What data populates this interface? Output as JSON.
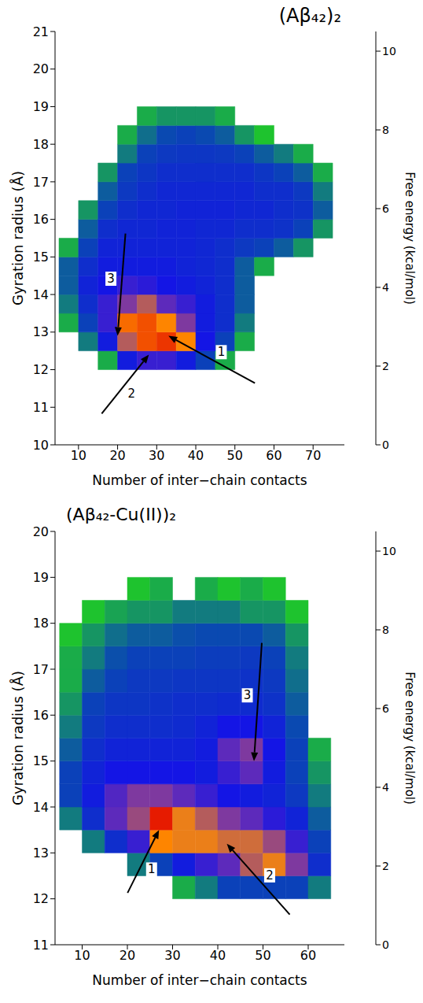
{
  "chart_data": [
    {
      "type": "heatmap",
      "title": "(Aβ₄₂)₂",
      "x_label": "Number of inter−chain contacts",
      "y_label": "Gyration radius (Å)",
      "colorbar_label": "Free energy (kcal/mol)",
      "xlim": [
        4,
        78
      ],
      "xticks": [
        10,
        20,
        30,
        40,
        50,
        60,
        70
      ],
      "ylim": [
        10,
        21
      ],
      "yticks": [
        10,
        11,
        12,
        13,
        14,
        15,
        16,
        17,
        18,
        19,
        20,
        21
      ],
      "colorbar_range": [
        0,
        10.5
      ],
      "colorbar_ticks": [
        0,
        2,
        4,
        6,
        8,
        10
      ],
      "x_edges": [
        5,
        10,
        15,
        20,
        25,
        30,
        35,
        40,
        45,
        50,
        55,
        60,
        65,
        70,
        75
      ],
      "y_edges": [
        12,
        12.5,
        13,
        13.5,
        14,
        14.5,
        15,
        15.5,
        16,
        16.5,
        17,
        17.5,
        18,
        18.5,
        19
      ],
      "z": [
        [
          null,
          null,
          5,
          2,
          1.5,
          1.5,
          2,
          3,
          5,
          null,
          null,
          null,
          null,
          null
        ],
        [
          null,
          4,
          2,
          0.8,
          0.3,
          0.2,
          0.5,
          1.8,
          3,
          5,
          null,
          null,
          null,
          null
        ],
        [
          5,
          3,
          1.5,
          0.4,
          0.3,
          0.5,
          1,
          2,
          2.5,
          4,
          null,
          null,
          null,
          null
        ],
        [
          4,
          2.5,
          1.5,
          1,
          0.8,
          1.2,
          1.5,
          2,
          2.5,
          3.5,
          null,
          null,
          null,
          null
        ],
        [
          3.5,
          2.2,
          1.8,
          1.5,
          1.6,
          1.8,
          2,
          2.2,
          2.5,
          3.5,
          null,
          null,
          null,
          null
        ],
        [
          3.5,
          2.5,
          2,
          2,
          2,
          2,
          2.2,
          2.3,
          2.5,
          3.5,
          5,
          null,
          null,
          null
        ],
        [
          5,
          3,
          2.2,
          2.2,
          2.2,
          2.2,
          2.2,
          2.3,
          2.5,
          2.8,
          3,
          3.5,
          4.5,
          null
        ],
        [
          null,
          3.5,
          2.5,
          2.3,
          2.3,
          2.2,
          2.2,
          2.3,
          2.3,
          2.5,
          2.5,
          2.6,
          3,
          4.5
        ],
        [
          null,
          4.5,
          3,
          2.5,
          2.3,
          2.3,
          2.2,
          2.2,
          2.2,
          2.3,
          2.3,
          2.5,
          2.6,
          3.5
        ],
        [
          null,
          null,
          3.5,
          2.8,
          2.5,
          2.3,
          2.3,
          2.3,
          2.3,
          2.3,
          2.5,
          2.5,
          2.8,
          4
        ],
        [
          null,
          null,
          4.5,
          3,
          2.7,
          2.5,
          2.5,
          2.5,
          2.5,
          2.5,
          2.7,
          3,
          3.5,
          5
        ],
        [
          null,
          null,
          null,
          4,
          3,
          2.8,
          2.7,
          2.7,
          2.8,
          3,
          3.5,
          4,
          5,
          null
        ],
        [
          null,
          null,
          null,
          5,
          3.8,
          3.2,
          3,
          3.2,
          3.5,
          4.5,
          5.5,
          null,
          null,
          null
        ],
        [
          null,
          null,
          null,
          null,
          5,
          4.5,
          4.5,
          4.5,
          5,
          null,
          null,
          null,
          null,
          null
        ]
      ],
      "annotations": [
        {
          "text": "1",
          "x": 33,
          "y": 12.9
        },
        {
          "text": "2",
          "x": 28,
          "y": 12.4
        },
        {
          "text": "3",
          "x": 20,
          "y": 12.9
        }
      ]
    },
    {
      "type": "heatmap",
      "title": "(Aβ₄₂-Cu(II))₂",
      "x_label": "Number of inter−chain contacts",
      "y_label": "Gyration radius (Å)",
      "colorbar_label": "Free energy (kcal/mol)",
      "xlim": [
        4,
        68
      ],
      "xticks": [
        10,
        20,
        30,
        40,
        50,
        60
      ],
      "ylim": [
        11,
        20
      ],
      "yticks": [
        11,
        12,
        13,
        14,
        15,
        16,
        17,
        18,
        19,
        20
      ],
      "colorbar_range": [
        0,
        10.5
      ],
      "colorbar_ticks": [
        0,
        2,
        4,
        6,
        8,
        10
      ],
      "x_edges": [
        5,
        10,
        15,
        20,
        25,
        30,
        35,
        40,
        45,
        50,
        55,
        60,
        65
      ],
      "y_edges": [
        12,
        12.5,
        13,
        13.5,
        14,
        14.5,
        15,
        15.5,
        16,
        16.5,
        17,
        17.5,
        18,
        18.5,
        19
      ],
      "z": [
        [
          null,
          null,
          null,
          null,
          null,
          5,
          4,
          3,
          3,
          3,
          3,
          4
        ],
        [
          null,
          null,
          null,
          4,
          3,
          2,
          1.5,
          1.2,
          0.8,
          0.6,
          1,
          2.5
        ],
        [
          null,
          4,
          2.5,
          1.5,
          0.5,
          0.6,
          0.6,
          0.7,
          0.7,
          0.9,
          1.5,
          3
        ],
        [
          4,
          2.5,
          1.2,
          0.9,
          0.1,
          0.6,
          0.8,
          1,
          1.2,
          1.6,
          2.2,
          3.5
        ],
        [
          3,
          2,
          1.3,
          1,
          1,
          1.2,
          1.5,
          1.8,
          2,
          2.2,
          2.8,
          4
        ],
        [
          3,
          2.2,
          1.8,
          1.8,
          1.8,
          1.8,
          2,
          1.5,
          1.2,
          2,
          3,
          4.5
        ],
        [
          3.5,
          2.5,
          2.2,
          2.2,
          2.2,
          2.2,
          2,
          1.2,
          1,
          1.8,
          3,
          5
        ],
        [
          4,
          2.8,
          2.5,
          2.5,
          2.5,
          2.4,
          2.2,
          1.8,
          1.8,
          2.2,
          3.2,
          null
        ],
        [
          4.5,
          3,
          2.7,
          2.7,
          2.6,
          2.5,
          2.5,
          2.4,
          2.4,
          2.6,
          3.5,
          null
        ],
        [
          5,
          3.5,
          3,
          2.8,
          2.8,
          2.7,
          2.7,
          2.7,
          2.6,
          2.8,
          3.8,
          null
        ],
        [
          5,
          4,
          3.3,
          3,
          3,
          3,
          2.9,
          2.9,
          2.8,
          3,
          4,
          null
        ],
        [
          5.5,
          4.5,
          3.8,
          3.5,
          3.5,
          3.3,
          3.2,
          3.2,
          3.2,
          3.5,
          4.5,
          null
        ],
        [
          null,
          5.5,
          4.8,
          4.5,
          4.5,
          4,
          4,
          4,
          4.5,
          4.5,
          5.5,
          null
        ],
        [
          null,
          null,
          null,
          5.5,
          5,
          null,
          5,
          5.5,
          5,
          5.5,
          null,
          null
        ]
      ],
      "annotations": [
        {
          "text": "1",
          "x": 27,
          "y": 13.5
        },
        {
          "text": "2",
          "x": 42,
          "y": 13.2
        },
        {
          "text": "3",
          "x": 48,
          "y": 15
        }
      ]
    }
  ]
}
